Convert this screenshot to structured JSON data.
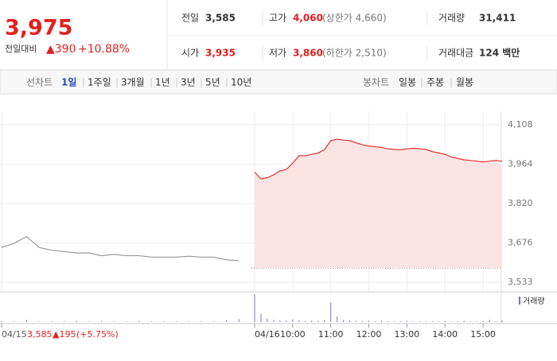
{
  "header": {
    "price": "3,975",
    "change_label": "전일대비",
    "change": "▲390",
    "change_pct": "+10.88%"
  },
  "stats": [
    {
      "label": "전일",
      "value": "3,585"
    },
    {
      "label": "고가",
      "value": "4,060",
      "note": "(상한가 4,660)"
    },
    {
      "label": "거래량",
      "value": "31,411"
    },
    {
      "label": "시가",
      "value": "3,935"
    },
    {
      "label": "저가",
      "value": "3,860",
      "note": "(하한가 2,510)"
    },
    {
      "label": "거래대금",
      "value": "124 백만"
    }
  ],
  "tabs": {
    "line_label": "선차트",
    "line": [
      "1일",
      "1주일",
      "3개월",
      "1년",
      "3년",
      "5년",
      "10년"
    ],
    "candle_label": "봉차트",
    "candle": [
      "일봉",
      "주봉",
      "월봉"
    ]
  },
  "chart_data": {
    "type": "line",
    "categories": [
      "04/15",
      null,
      null,
      null,
      null,
      null,
      null,
      null,
      null,
      null,
      null,
      null,
      null,
      null,
      null,
      null,
      null,
      null,
      null,
      null,
      "04/16",
      null,
      null,
      null,
      null,
      null,
      "10:00",
      null,
      null,
      null,
      null,
      null,
      "11:00",
      null,
      null,
      null,
      null,
      null,
      "12:00",
      null,
      null,
      null,
      null,
      null,
      "13:00",
      null,
      null,
      null,
      null,
      null,
      "14:00",
      null,
      null,
      null,
      null,
      null,
      "15:00",
      null,
      null,
      null
    ],
    "series": [
      {
        "color": "#9a9a9a",
        "values": [
          3660,
          3675,
          3700,
          3660,
          3650,
          3645,
          3640,
          3640,
          3630,
          3635,
          3630,
          3630,
          3625,
          3625,
          3625,
          3628,
          3625,
          3625,
          3615,
          3612,
          null,
          null,
          null,
          null,
          null,
          null,
          null,
          null,
          null,
          null,
          null,
          null,
          null,
          null,
          null,
          null,
          null,
          null,
          null,
          null,
          null,
          null,
          null,
          null,
          null,
          null,
          null,
          null,
          null,
          null,
          null,
          null,
          null,
          null,
          null,
          null,
          null,
          null,
          null,
          null
        ]
      },
      {
        "color": "#e83030",
        "fill": "#fde4e4",
        "values": [
          null,
          null,
          null,
          null,
          null,
          null,
          null,
          null,
          null,
          null,
          null,
          null,
          null,
          null,
          null,
          null,
          null,
          null,
          null,
          null,
          3935,
          3910,
          3915,
          3925,
          3940,
          3945,
          3968,
          3995,
          3995,
          4000,
          4005,
          4017,
          4050,
          4055,
          4052,
          4050,
          4042,
          4035,
          4030,
          4028,
          4025,
          4020,
          4018,
          4017,
          4020,
          4022,
          4020,
          4018,
          4010,
          4005,
          4000,
          3990,
          3985,
          3980,
          3978,
          3975,
          3972,
          3975,
          3978,
          3975
        ]
      }
    ],
    "ylim": [
      3504,
      4157
    ],
    "yticks": [
      {
        "value": 4108,
        "label": "4,108"
      },
      {
        "value": 3964,
        "label": "3,964"
      },
      {
        "value": 3820,
        "label": "3,820"
      },
      {
        "value": 3676,
        "label": "3,676"
      },
      {
        "value": 3533,
        "label": "3,533"
      }
    ],
    "grid": true,
    "prev_day": {
      "date": "04/15",
      "close": {
        "value": 3585,
        "label": "3,585"
      },
      "change": "▲195",
      "change_pct": "(+5.75%)"
    },
    "volume": {
      "name": "거래량",
      "color": "#7d6fc9",
      "ylim": [
        0,
        100
      ],
      "values": [
        4,
        3,
        8,
        2,
        3,
        2,
        5,
        2,
        3,
        2,
        2,
        4,
        2,
        3,
        2,
        2,
        3,
        2,
        6,
        10,
        100,
        30,
        12,
        8,
        6,
        5,
        10,
        6,
        4,
        5,
        4,
        6,
        70,
        20,
        8,
        6,
        4,
        3,
        5,
        3,
        4,
        3,
        2,
        3,
        4,
        2,
        3,
        2,
        3,
        2,
        4,
        2,
        3,
        5,
        2,
        3,
        4,
        8,
        3,
        6
      ]
    }
  }
}
